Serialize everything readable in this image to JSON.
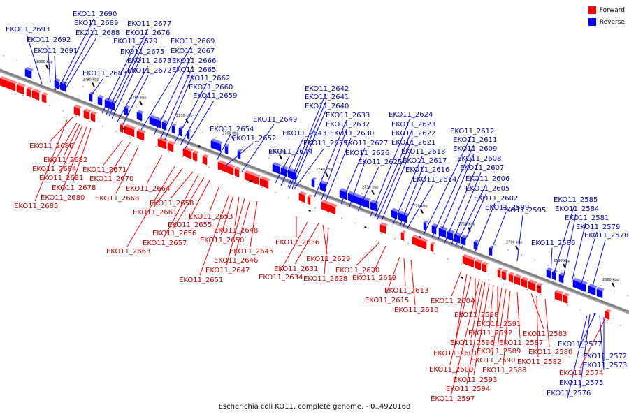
{
  "caption": "Escherichia coli KO11, complete genome. - 0..4920168",
  "legend": [
    {
      "label": "Forward",
      "color": "#ff0000"
    },
    {
      "label": "Reverse",
      "color": "#0000ff"
    }
  ],
  "colors": {
    "forward": "#ff0000",
    "reverse": "#0000ff",
    "axis": "#808080"
  },
  "ticks": [
    "2800 kbp",
    "2790 kbp",
    "2780 kbp",
    "2770 kbp",
    "2760 kbp",
    "2750 kbp",
    "2740 kbp",
    "2730 kbp",
    "2720 kbp",
    "2710 kbp",
    "2700 kbp",
    "2690 kbp",
    "2680 kbp"
  ],
  "reverse_genes": [
    "EKO11_2693",
    "EKO11_2692",
    "EKO11_2691",
    "EKO11_2690",
    "EKO11_2689",
    "EKO11_2688",
    "EKO11_2683",
    "EKO11_2679",
    "EKO11_2677",
    "EKO11_2676",
    "EKO11_2675",
    "EKO11_2673",
    "EKO11_2672",
    "EKO11_2669",
    "EKO11_2667",
    "EKO11_2666",
    "EKO11_2665",
    "EKO11_2662",
    "EKO11_2660",
    "EKO11_2659",
    "EKO11_2654",
    "EKO11_2652",
    "EKO11_2649",
    "EKO11_2644",
    "EKO11_2643",
    "EKO11_2642",
    "EKO11_2641",
    "EKO11_2640",
    "EKO11_2639",
    "EKO11_2633",
    "EKO11_2632",
    "EKO11_2630",
    "EKO11_2627",
    "EKO11_2626",
    "EKO11_2625",
    "EKO11_2624",
    "EKO11_2623",
    "EKO11_2622",
    "EKO11_2621",
    "EKO11_2618",
    "EKO11_2617",
    "EKO11_2616",
    "EKO11_2614",
    "EKO11_2612",
    "EKO11_2611",
    "EKO11_2609",
    "EKO11_2608",
    "EKO11_2607",
    "EKO11_2606",
    "EKO11_2605",
    "EKO11_2602",
    "EKO11_2599",
    "EKO11_2595",
    "EKO11_2586",
    "EKO11_2585",
    "EKO11_2584",
    "EKO11_2581",
    "EKO11_2579",
    "EKO11_2578",
    "EKO11_2577",
    "EKO11_2576",
    "EKO11_2575",
    "EKO11_2573",
    "EKO11_2572"
  ],
  "forward_genes": [
    "EKO11_2686",
    "EKO11_2685",
    "EKO11_2684",
    "EKO11_2682",
    "EKO11_2681",
    "EKO11_2680",
    "EKO11_2678",
    "EKO11_2671",
    "EKO11_2670",
    "EKO11_2668",
    "EKO11_2664",
    "EKO11_2663",
    "EKO11_2661",
    "EKO11_2658",
    "EKO11_2657",
    "EKO11_2656",
    "EKO11_2655",
    "EKO11_2653",
    "EKO11_2651",
    "EKO11_2650",
    "EKO11_2648",
    "EKO11_2647",
    "EKO11_2646",
    "EKO11_2645",
    "EKO11_2636",
    "EKO11_2634",
    "EKO11_2631",
    "EKO11_2629",
    "EKO11_2628",
    "EKO11_2620",
    "EKO11_2619",
    "EKO11_2615",
    "EKO11_2613",
    "EKO11_2610",
    "EKO11_2604",
    "EKO11_2601",
    "EKO11_2600",
    "EKO11_2598",
    "EKO11_2597",
    "EKO11_2596",
    "EKO11_2594",
    "EKO11_2593",
    "EKO11_2592",
    "EKO11_2591",
    "EKO11_2590",
    "EKO11_2589",
    "EKO11_2588",
    "EKO11_2587",
    "EKO11_2583",
    "EKO11_2582",
    "EKO11_2580",
    "EKO11_2574"
  ]
}
